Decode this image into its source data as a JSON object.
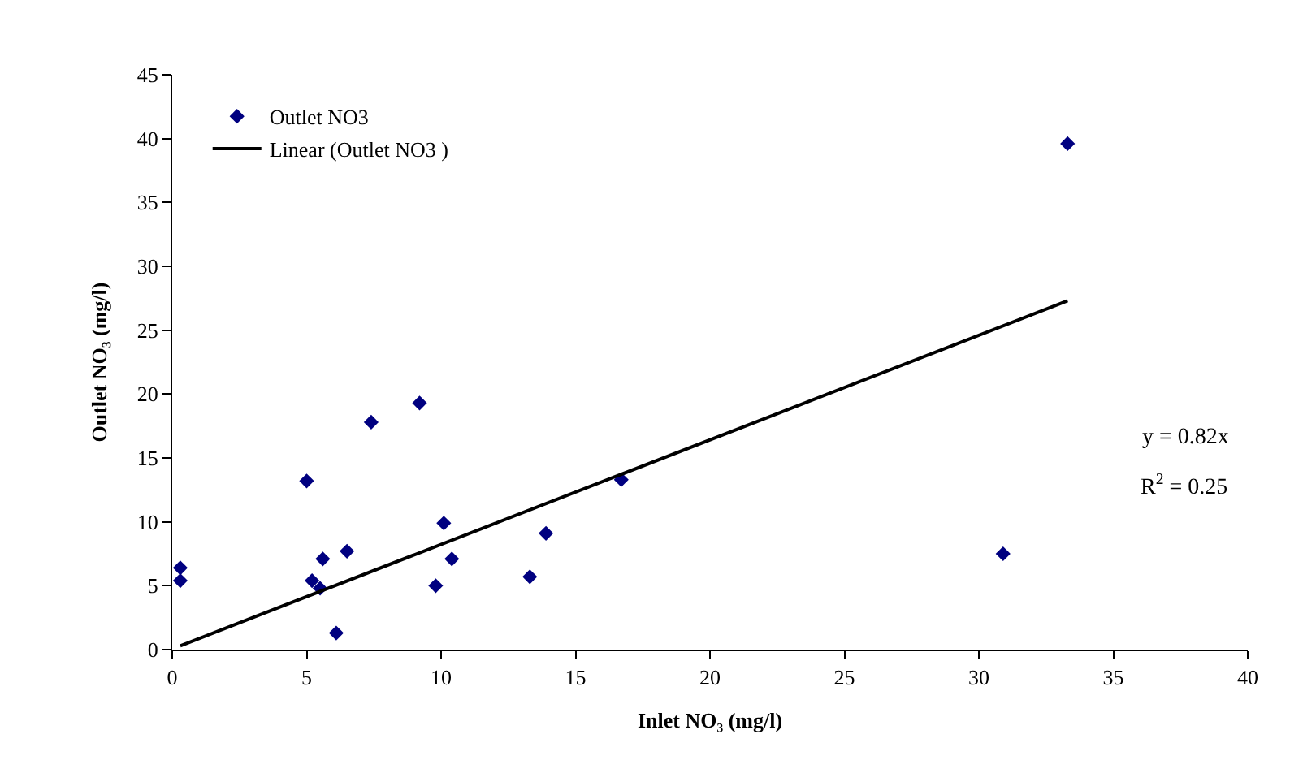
{
  "chart_data": {
    "type": "scatter",
    "xlabel": "Inlet NO₃ (mg/l)",
    "ylabel": "Outlet NO₃ (mg/l)",
    "xlim": [
      0,
      40
    ],
    "xticks": [
      0,
      5,
      10,
      15,
      20,
      25,
      30,
      35,
      40
    ],
    "ylim": [
      0,
      45
    ],
    "yticks": [
      0,
      5,
      10,
      15,
      20,
      25,
      30,
      35,
      40,
      45
    ],
    "legend": "top left",
    "series": [
      {
        "name": "Outlet NO3",
        "marker": "diamond",
        "color": "#000080",
        "x": [
          0.3,
          0.3,
          5.0,
          5.2,
          5.5,
          5.6,
          6.1,
          6.5,
          7.4,
          9.2,
          9.8,
          10.1,
          10.4,
          13.3,
          13.9,
          16.7,
          30.9,
          33.3
        ],
        "values": [
          6.4,
          5.4,
          13.2,
          5.4,
          4.8,
          7.1,
          1.3,
          7.7,
          17.8,
          19.3,
          5.0,
          9.9,
          7.1,
          5.7,
          9.1,
          13.3,
          7.5,
          39.6
        ]
      },
      {
        "name": "Linear (Outlet NO3 )",
        "type": "line",
        "color": "#000000",
        "marker": "none",
        "line_style": "solid",
        "x": [
          0.3,
          33.3
        ],
        "values": [
          0.3,
          27.3
        ]
      }
    ],
    "annotations": [
      "y = 0.82x",
      "R$^{2}$ = 0.25"
    ]
  }
}
